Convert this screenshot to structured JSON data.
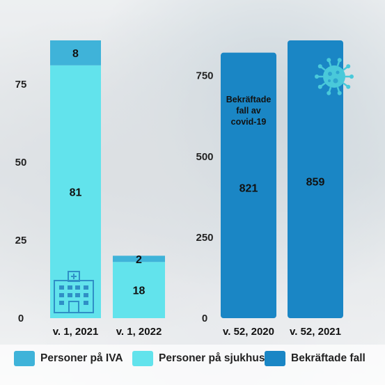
{
  "colors": {
    "iva": "#3fb3d9",
    "sjukhus": "#62e3ec",
    "fall": "#1a86c5",
    "icon_hospital": "#2f8fc6",
    "icon_virus": "#49c9da"
  },
  "icons": [
    "hospital-icon",
    "virus-icon"
  ],
  "chart_data": [
    {
      "type": "bar",
      "stacked": true,
      "categories": [
        "v. 1, 2021",
        "v. 1, 2022"
      ],
      "series": [
        {
          "name": "Personer på sjukhus",
          "values": [
            81,
            18
          ]
        },
        {
          "name": "Personer på IVA",
          "values": [
            8,
            2
          ]
        }
      ],
      "ylim": [
        0,
        89
      ],
      "yticks": [
        "0",
        "25",
        "50",
        "75"
      ],
      "ytick_values": [
        0,
        25,
        50,
        75
      ],
      "value_labels": [
        [
          "81",
          "18"
        ],
        [
          "8",
          "2"
        ]
      ]
    },
    {
      "type": "bar",
      "categories": [
        "v. 52, 2020",
        "v. 52, 2021"
      ],
      "series": [
        {
          "name": "Bekräftade fall",
          "values": [
            821,
            859
          ]
        }
      ],
      "ylim": [
        0,
        859
      ],
      "yticks": [
        "0",
        "250",
        "500",
        "750"
      ],
      "ytick_values": [
        0,
        250,
        500,
        750
      ],
      "value_labels": [
        "821",
        "859"
      ],
      "annotation": "Bekräftade fall av covid-19"
    }
  ],
  "legend": {
    "items": [
      {
        "label": "Personer på IVA"
      },
      {
        "label": "Personer på sjukhus"
      },
      {
        "label": "Bekräftade fall"
      }
    ]
  }
}
